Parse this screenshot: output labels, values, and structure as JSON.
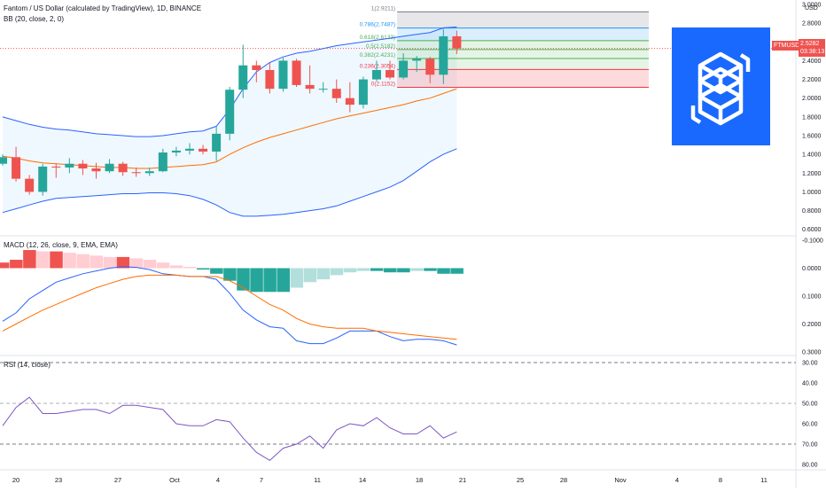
{
  "header": {
    "title": "Fantom / US Dollar (calculated by TradingView), 1D, BINANCE",
    "bb_label": "BB (20, close, 2, 0)",
    "currency": "USD"
  },
  "price_tag": {
    "symbol": "FTMUSD",
    "price": "2.5282",
    "countdown": "03:38:13"
  },
  "macd_label": "MACD (12, 26, close, 9, EMA, EMA)",
  "rsi_label": "RSI (14, close)",
  "logo": {
    "name": "fantom-logo",
    "bg": "#1969ff"
  },
  "colors": {
    "up": "#26a69a",
    "down": "#ef5350",
    "bb_line": "#2962ff",
    "basis": "#ff6d00",
    "macd": "#2962ff",
    "signal": "#ff6d00",
    "rsi": "#7e57c2"
  },
  "chart_data": [
    {
      "type": "candlestick",
      "title": "Fantom / US Dollar (calculated by TradingView), 1D, BINANCE",
      "x_ticks": [
        "20",
        "23",
        "27",
        "Oct",
        "4",
        "7",
        "11",
        "14",
        "18",
        "21",
        "25",
        "28",
        "Nov",
        "4",
        "8",
        "11"
      ],
      "y_ticks": [
        "3.0000",
        "2.8000",
        "2.6000",
        "2.4000",
        "2.2000",
        "2.0000",
        "1.8000",
        "1.6000",
        "1.4000",
        "1.2000",
        "1.0000",
        "0.8000",
        "0.6000"
      ],
      "ylim": [
        0.55,
        3.0
      ],
      "candles": [
        {
          "o": 1.3,
          "h": 1.4,
          "l": 1.28,
          "c": 1.37
        },
        {
          "o": 1.37,
          "h": 1.48,
          "l": 1.11,
          "c": 1.14
        },
        {
          "o": 1.14,
          "h": 1.18,
          "l": 0.97,
          "c": 1.0
        },
        {
          "o": 1.0,
          "h": 1.3,
          "l": 0.96,
          "c": 1.27
        },
        {
          "o": 1.27,
          "h": 1.3,
          "l": 1.15,
          "c": 1.26
        },
        {
          "o": 1.26,
          "h": 1.36,
          "l": 1.2,
          "c": 1.3
        },
        {
          "o": 1.3,
          "h": 1.34,
          "l": 1.18,
          "c": 1.25
        },
        {
          "o": 1.25,
          "h": 1.31,
          "l": 1.14,
          "c": 1.22
        },
        {
          "o": 1.22,
          "h": 1.35,
          "l": 1.2,
          "c": 1.3
        },
        {
          "o": 1.3,
          "h": 1.32,
          "l": 1.17,
          "c": 1.21
        },
        {
          "o": 1.21,
          "h": 1.26,
          "l": 1.16,
          "c": 1.2
        },
        {
          "o": 1.2,
          "h": 1.26,
          "l": 1.17,
          "c": 1.22
        },
        {
          "o": 1.22,
          "h": 1.46,
          "l": 1.21,
          "c": 1.42
        },
        {
          "o": 1.42,
          "h": 1.48,
          "l": 1.38,
          "c": 1.44
        },
        {
          "o": 1.44,
          "h": 1.52,
          "l": 1.4,
          "c": 1.46
        },
        {
          "o": 1.46,
          "h": 1.5,
          "l": 1.4,
          "c": 1.43
        },
        {
          "o": 1.43,
          "h": 1.7,
          "l": 1.33,
          "c": 1.62
        },
        {
          "o": 1.62,
          "h": 2.12,
          "l": 1.55,
          "c": 2.09
        },
        {
          "o": 2.09,
          "h": 2.57,
          "l": 2.0,
          "c": 2.35
        },
        {
          "o": 2.35,
          "h": 2.4,
          "l": 2.17,
          "c": 2.3
        },
        {
          "o": 2.3,
          "h": 2.38,
          "l": 2.05,
          "c": 2.1
        },
        {
          "o": 2.1,
          "h": 2.43,
          "l": 2.07,
          "c": 2.4
        },
        {
          "o": 2.4,
          "h": 2.42,
          "l": 2.12,
          "c": 2.14
        },
        {
          "o": 2.14,
          "h": 2.35,
          "l": 2.05,
          "c": 2.1
        },
        {
          "o": 2.1,
          "h": 2.17,
          "l": 2.06,
          "c": 2.1
        },
        {
          "o": 2.1,
          "h": 2.2,
          "l": 1.95,
          "c": 2.0
        },
        {
          "o": 2.0,
          "h": 2.17,
          "l": 1.85,
          "c": 1.93
        },
        {
          "o": 1.93,
          "h": 2.23,
          "l": 1.89,
          "c": 2.2
        },
        {
          "o": 2.2,
          "h": 2.4,
          "l": 2.18,
          "c": 2.3
        },
        {
          "o": 2.3,
          "h": 2.4,
          "l": 2.2,
          "c": 2.22
        },
        {
          "o": 2.22,
          "h": 2.48,
          "l": 2.2,
          "c": 2.4
        },
        {
          "o": 2.4,
          "h": 2.45,
          "l": 2.28,
          "c": 2.42
        },
        {
          "o": 2.42,
          "h": 2.44,
          "l": 2.16,
          "c": 2.25
        },
        {
          "o": 2.25,
          "h": 2.74,
          "l": 2.15,
          "c": 2.66
        },
        {
          "o": 2.66,
          "h": 2.72,
          "l": 2.47,
          "c": 2.53
        }
      ],
      "bb_upper": [
        1.8,
        1.76,
        1.72,
        1.69,
        1.67,
        1.66,
        1.64,
        1.62,
        1.61,
        1.6,
        1.59,
        1.59,
        1.6,
        1.62,
        1.64,
        1.65,
        1.7,
        1.88,
        2.1,
        2.28,
        2.38,
        2.44,
        2.48,
        2.5,
        2.53,
        2.56,
        2.58,
        2.6,
        2.62,
        2.64,
        2.66,
        2.68,
        2.7,
        2.75,
        2.76
      ],
      "bb_basis": [
        1.38,
        1.36,
        1.33,
        1.31,
        1.3,
        1.29,
        1.28,
        1.27,
        1.26,
        1.26,
        1.25,
        1.25,
        1.26,
        1.27,
        1.28,
        1.29,
        1.32,
        1.4,
        1.47,
        1.53,
        1.58,
        1.62,
        1.66,
        1.7,
        1.74,
        1.78,
        1.81,
        1.84,
        1.87,
        1.9,
        1.93,
        1.97,
        2.0,
        2.05,
        2.1
      ],
      "bb_lower": [
        0.78,
        0.82,
        0.86,
        0.9,
        0.93,
        0.94,
        0.95,
        0.96,
        0.97,
        0.98,
        0.98,
        0.99,
        0.99,
        0.98,
        0.96,
        0.92,
        0.86,
        0.78,
        0.74,
        0.74,
        0.75,
        0.76,
        0.78,
        0.8,
        0.82,
        0.85,
        0.9,
        0.95,
        1.0,
        1.05,
        1.12,
        1.22,
        1.32,
        1.4,
        1.46
      ],
      "fibonacci": [
        {
          "label": "1(2.9211)",
          "value": 2.9211
        },
        {
          "label": "0.786(2.7487)",
          "value": 2.7487
        },
        {
          "label": "0.618(2.6133)",
          "value": 2.6133
        },
        {
          "label": "0.5(2.5182)",
          "value": 2.5182
        },
        {
          "label": "0.382(2.4231)",
          "value": 2.4231
        },
        {
          "label": "0.236(2.3054)",
          "value": 2.3054
        },
        {
          "label": "0(2.1152)",
          "value": 2.1152
        }
      ]
    },
    {
      "type": "macd",
      "title": "MACD (12, 26, close, 9, EMA, EMA)",
      "y_ticks": [
        "0.3000",
        "0.2000",
        "0.1000",
        "0.0000",
        "-0.1000"
      ],
      "ylim": [
        -0.1,
        0.3
      ],
      "histogram": [
        -0.02,
        -0.03,
        -0.065,
        -0.06,
        -0.06,
        -0.055,
        -0.05,
        -0.045,
        -0.04,
        -0.04,
        -0.035,
        -0.03,
        -0.02,
        -0.01,
        -0.005,
        0.005,
        0.02,
        0.045,
        0.08,
        0.085,
        0.085,
        0.085,
        0.07,
        0.05,
        0.04,
        0.025,
        0.015,
        0.01,
        0.01,
        0.015,
        0.015,
        0.01,
        0.01,
        0.02,
        0.02
      ],
      "macd": [
        0.19,
        0.16,
        0.11,
        0.08,
        0.05,
        0.035,
        0.02,
        0.01,
        0.0,
        -0.005,
        -0.003,
        0.005,
        0.02,
        0.025,
        0.03,
        0.03,
        0.04,
        0.09,
        0.15,
        0.185,
        0.21,
        0.215,
        0.26,
        0.27,
        0.27,
        0.25,
        0.225,
        0.225,
        0.225,
        0.245,
        0.26,
        0.255,
        0.255,
        0.26,
        0.275
      ],
      "signal": [
        0.225,
        0.2,
        0.175,
        0.15,
        0.13,
        0.11,
        0.09,
        0.07,
        0.055,
        0.04,
        0.03,
        0.025,
        0.025,
        0.025,
        0.03,
        0.03,
        0.03,
        0.045,
        0.07,
        0.1,
        0.13,
        0.15,
        0.18,
        0.2,
        0.21,
        0.215,
        0.215,
        0.215,
        0.225,
        0.23,
        0.235,
        0.24,
        0.245,
        0.25,
        0.255
      ]
    },
    {
      "type": "rsi",
      "title": "RSI (14, close)",
      "y_ticks": [
        "80.00",
        "70.00",
        "60.00",
        "50.00",
        "40.00",
        "30.00"
      ],
      "ylim": [
        28,
        80
      ],
      "values": [
        61,
        52,
        47,
        55,
        55,
        54,
        53,
        53,
        55,
        51,
        51,
        52,
        53,
        60,
        61,
        61,
        58,
        59,
        67,
        74,
        78,
        72,
        70,
        66,
        72,
        63,
        60,
        61,
        57,
        62,
        65,
        65,
        61,
        67,
        64
      ],
      "bands": [
        70,
        30
      ],
      "midline": 50
    }
  ]
}
